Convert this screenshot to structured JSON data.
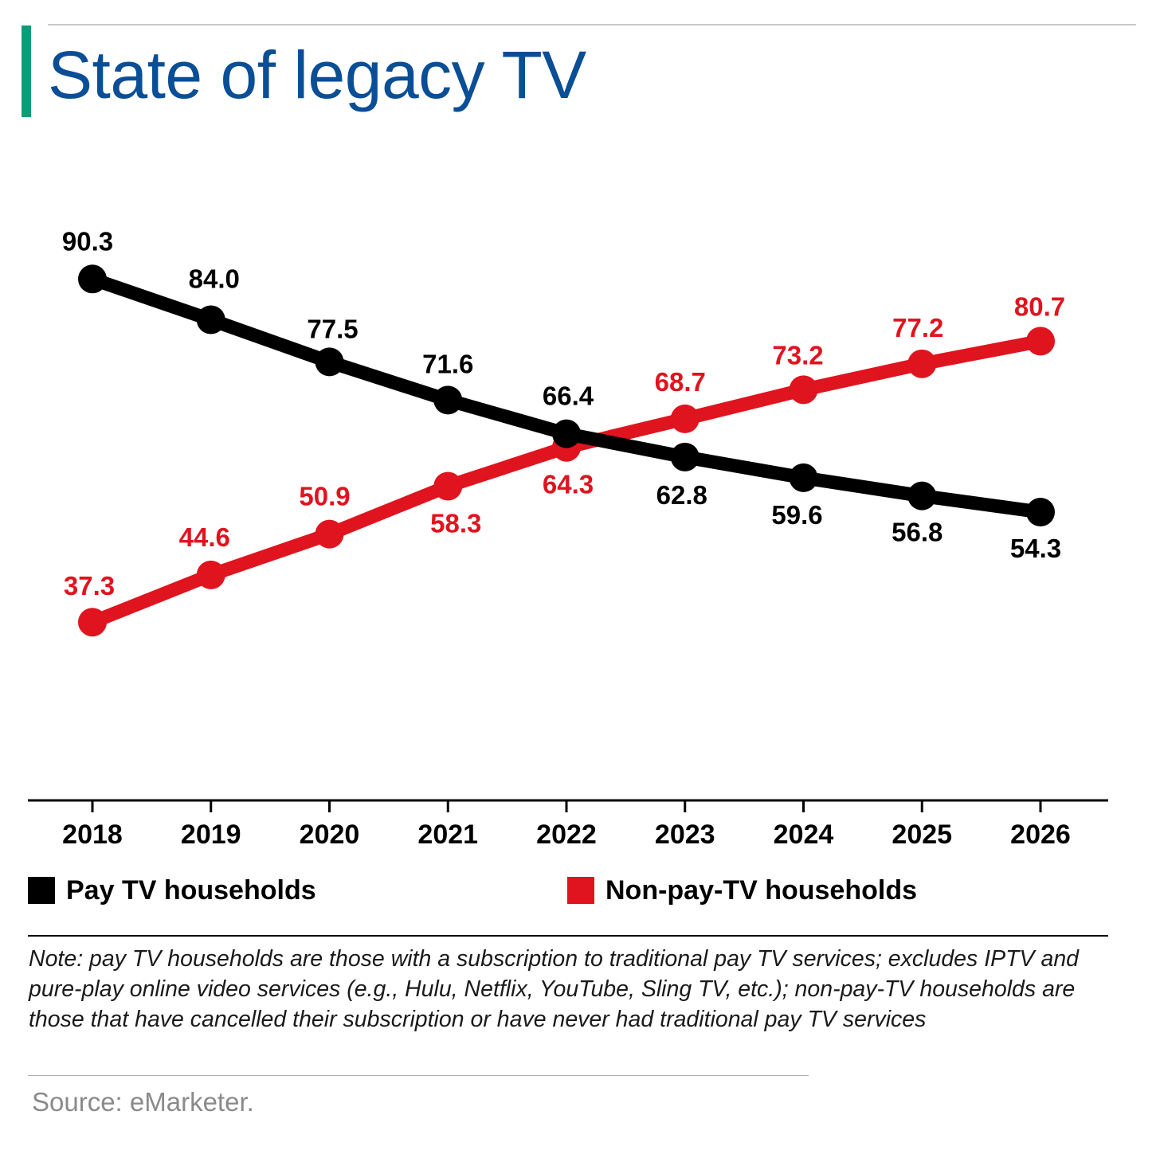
{
  "title": "State of legacy TV",
  "colors": {
    "accent": "#0a9e78",
    "title": "#0a4e96",
    "pay_tv": "#000000",
    "non_pay_tv": "#e0141e"
  },
  "chart_data": {
    "type": "line",
    "title": "State of legacy TV",
    "xlabel": "",
    "ylabel": "",
    "ylim": [
      30,
      95
    ],
    "grid": false,
    "legend_position": "bottom",
    "x": [
      "2018",
      "2019",
      "2020",
      "2021",
      "2022",
      "2023",
      "2024",
      "2025",
      "2026"
    ],
    "series": [
      {
        "name": "Pay TV households",
        "color": "#000000",
        "values": [
          90.3,
          84.0,
          77.5,
          71.6,
          66.4,
          62.8,
          59.6,
          56.8,
          54.3
        ],
        "labels": [
          "90.3",
          "84.0",
          "77.5",
          "71.6",
          "66.4",
          "62.8",
          "59.6",
          "56.8",
          "54.3"
        ]
      },
      {
        "name": "Non-pay-TV households",
        "color": "#e0141e",
        "values": [
          37.3,
          44.6,
          50.9,
          58.3,
          64.3,
          68.7,
          73.2,
          77.2,
          80.7
        ],
        "labels": [
          "37.3",
          "44.6",
          "50.9",
          "58.3",
          "64.3",
          "68.7",
          "73.2",
          "77.2",
          "80.7"
        ]
      }
    ]
  },
  "legend": {
    "pay_label": "Pay TV households",
    "nonpay_label": "Non-pay-TV households"
  },
  "note": "Note: pay TV households are those with a subscription to traditional pay TV services; excludes IPTV and pure-play online video services (e.g., Hulu, Netflix, YouTube, Sling TV, etc.); non-pay-TV households are those that have cancelled their subscription or have never had traditional pay TV services",
  "source": "Source: eMarketer."
}
